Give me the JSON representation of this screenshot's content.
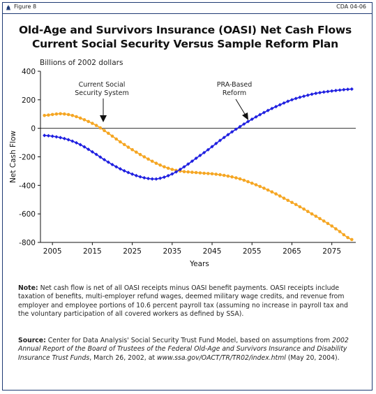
{
  "header": {
    "figure_label": "Figure 8",
    "code_label": "CDA 04-06"
  },
  "title_line1": "Old-Age and Survivors Insurance (OASI) Net Cash Flows",
  "title_line2": "Current Social Security Versus Sample Reform Plan",
  "unit_label": "Billions of 2002 dollars",
  "annotations": {
    "current_line1": "Current Social",
    "current_line2": "Security System",
    "pra_line1": "PRA-Based",
    "pra_line2": "Reform"
  },
  "note_label": "Note:",
  "note_text": "Net cash flow is net of all OASI receipts minus OASI benefit payments. OASI receipts include taxation of benefits, multi-employer refund wages, deemed military wage credits, and revenue from employer and employee portions of 10.6 percent payroll tax (assuming no increase in payroll tax and the voluntary participation of all covered workers as defined by SSA).",
  "source_label": "Source:",
  "source_part1": "Center for Data Analysis' Social Security Trust Fund Model, based on assumptions from ",
  "source_italic1": "2002 Annual Report of the Board of Trustees of the Federal Old-Age and Survivors Insurance and Disability Insurance Trust Funds",
  "source_part2": ", March 26, 2002, at ",
  "source_italic2": "www.ssa.gov/OACT/TR/TR02/index.html",
  "source_part3": " (May 20, 2004).",
  "colors": {
    "current": "#f5a623",
    "pra": "#1f1fe0",
    "frame": "#1e3a73"
  },
  "chart_data": {
    "type": "line",
    "xlabel": "Years",
    "ylabel": "Net Cash Flow",
    "xlim": [
      2002,
      2081
    ],
    "ylim": [
      -800,
      400
    ],
    "xticks": [
      2005,
      2015,
      2025,
      2035,
      2045,
      2055,
      2065,
      2075
    ],
    "yticks": [
      400,
      200,
      0,
      -200,
      -400,
      -600,
      -800
    ],
    "grid": false,
    "series": [
      {
        "name": "Current Social Security System",
        "color": "#f5a623",
        "x": [
          2003,
          2007,
          2010,
          2013,
          2016,
          2019,
          2022,
          2025,
          2028,
          2031,
          2034,
          2037,
          2040,
          2043,
          2046,
          2049,
          2052,
          2055,
          2058,
          2061,
          2064,
          2067,
          2070,
          2073,
          2076,
          2080
        ],
        "y": [
          90,
          102,
          90,
          60,
          20,
          -35,
          -95,
          -150,
          -200,
          -245,
          -280,
          -300,
          -308,
          -315,
          -322,
          -335,
          -355,
          -385,
          -420,
          -460,
          -505,
          -550,
          -600,
          -650,
          -705,
          -780
        ]
      },
      {
        "name": "PRA-Based Reform",
        "color": "#1f1fe0",
        "x": [
          2003,
          2006,
          2009,
          2012,
          2015,
          2018,
          2021,
          2024,
          2027,
          2030,
          2032,
          2035,
          2038,
          2041,
          2044,
          2047,
          2050,
          2053,
          2056,
          2059,
          2062,
          2065,
          2068,
          2071,
          2074,
          2077,
          2080
        ],
        "y": [
          -50,
          -60,
          -80,
          -115,
          -165,
          -220,
          -270,
          -310,
          -340,
          -355,
          -350,
          -320,
          -270,
          -210,
          -150,
          -85,
          -25,
          30,
          80,
          125,
          165,
          200,
          225,
          245,
          258,
          268,
          275
        ]
      }
    ]
  }
}
